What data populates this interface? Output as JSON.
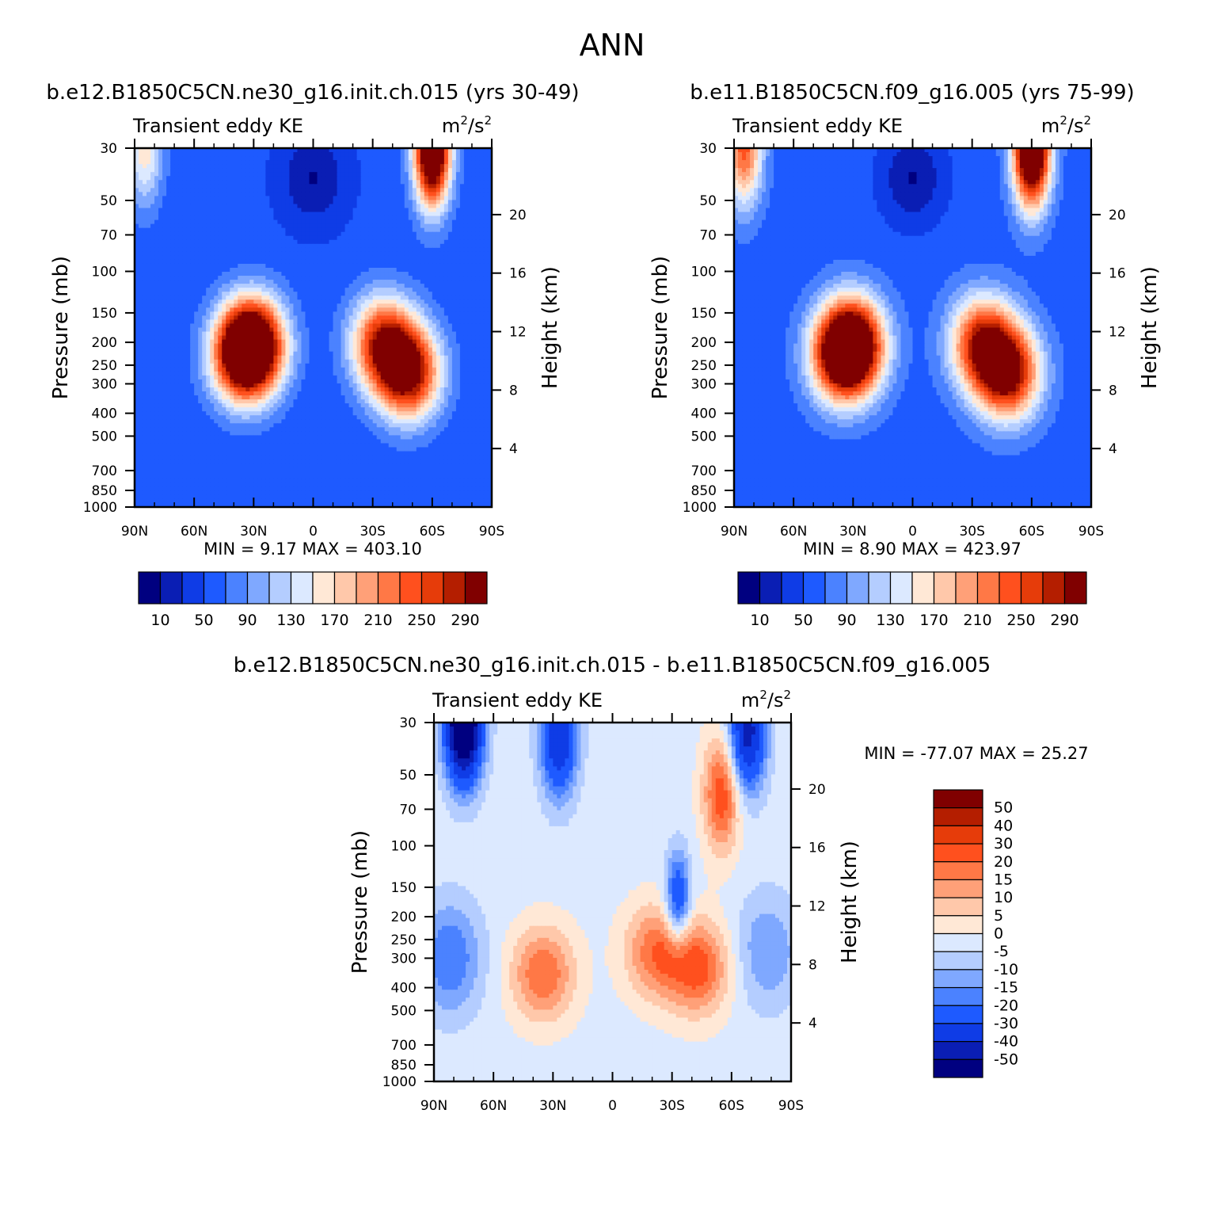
{
  "figure_title": "ANN",
  "colors": {
    "abs_palette": [
      "#000080",
      "#0a1eb4",
      "#0f3ce6",
      "#1e5aff",
      "#4b82ff",
      "#7fa8ff",
      "#b4cdff",
      "#dce9ff",
      "#ffe8d6",
      "#ffc8aa",
      "#ffa078",
      "#ff7846",
      "#ff501e",
      "#e63c0a",
      "#b41e00",
      "#800000"
    ],
    "diff_palette": [
      "#000080",
      "#0a1eb4",
      "#0f3ce6",
      "#1e5aff",
      "#4b82ff",
      "#7fa8ff",
      "#b4cdff",
      "#dce9ff",
      "#ffe8d6",
      "#ffc8aa",
      "#ffa078",
      "#ff7846",
      "#ff501e",
      "#e63c0a",
      "#b41e00",
      "#800000"
    ]
  },
  "chart_data": [
    {
      "type": "heatmap",
      "title": "b.e12.B1850C5CN.ne30_g16.init.ch.015 (yrs 30-49)",
      "left_label": "Transient eddy KE",
      "unit_base": "m",
      "unit_mid": "/s",
      "unit_exp": "2",
      "xlabel": "",
      "ylabel": "Pressure (mb)",
      "y2label": "Height (km)",
      "x_ticks": [
        {
          "value": -90,
          "label": "90N"
        },
        {
          "value": -60,
          "label": "60N"
        },
        {
          "value": -30,
          "label": "30N"
        },
        {
          "value": 0,
          "label": "0"
        },
        {
          "value": 30,
          "label": "30S"
        },
        {
          "value": 60,
          "label": "60S"
        },
        {
          "value": 90,
          "label": "90S"
        }
      ],
      "p_ticks": [
        30,
        50,
        70,
        100,
        150,
        200,
        250,
        300,
        400,
        500,
        700,
        850,
        1000
      ],
      "p_tick_labels": [
        "30",
        "50",
        "70",
        "100",
        "150",
        "200",
        "250",
        "300",
        "400",
        "500",
        "700",
        "850",
        "1000"
      ],
      "z_ticks": [
        4,
        8,
        12,
        16,
        20
      ],
      "z_tick_labels": [
        "4",
        "8",
        "12",
        "16",
        "20"
      ],
      "min_label": "MIN =",
      "min_value": "9.17",
      "max_label": "MAX =",
      "max_value": "403.10",
      "min": 9.17,
      "max": 403.1,
      "levels": [
        10,
        30,
        50,
        70,
        90,
        110,
        130,
        150,
        170,
        190,
        210,
        230,
        250,
        270,
        290
      ],
      "colorbar_labels": [
        "10",
        "50",
        "90",
        "130",
        "170",
        "210",
        "250",
        "290"
      ],
      "features": [
        {
          "name": "background",
          "lat": 0,
          "p": 300,
          "value": 55
        },
        {
          "name": "nh-subtropical-jet-core",
          "lat": -35,
          "p": 230,
          "value": 290
        },
        {
          "name": "nh-jet-upper-core",
          "lat": -30,
          "p": 200,
          "value": 280
        },
        {
          "name": "sh-storm-track-core",
          "lat": 48,
          "p": 270,
          "value": 300
        },
        {
          "name": "sh-jet-upper-core",
          "lat": 35,
          "p": 200,
          "value": 260
        },
        {
          "name": "sh-polar-stratosphere-max",
          "lat": 60,
          "p": 30,
          "value": 403
        },
        {
          "name": "equatorial-minimum",
          "lat": 0,
          "p": 40,
          "value": 9
        },
        {
          "name": "nh-polar-stratosphere",
          "lat": -85,
          "p": 30,
          "value": 165
        }
      ]
    },
    {
      "type": "heatmap",
      "title": "b.e11.B1850C5CN.f09_g16.005 (yrs 75-99)",
      "left_label": "Transient eddy KE",
      "unit_base": "m",
      "unit_mid": "/s",
      "unit_exp": "2",
      "xlabel": "",
      "ylabel": "Pressure (mb)",
      "y2label": "Height (km)",
      "x_ticks": [
        {
          "value": -90,
          "label": "90N"
        },
        {
          "value": -60,
          "label": "60N"
        },
        {
          "value": -30,
          "label": "30N"
        },
        {
          "value": 0,
          "label": "0"
        },
        {
          "value": 30,
          "label": "30S"
        },
        {
          "value": 60,
          "label": "60S"
        },
        {
          "value": 90,
          "label": "90S"
        }
      ],
      "p_ticks": [
        30,
        50,
        70,
        100,
        150,
        200,
        250,
        300,
        400,
        500,
        700,
        850,
        1000
      ],
      "p_tick_labels": [
        "30",
        "50",
        "70",
        "100",
        "150",
        "200",
        "250",
        "300",
        "400",
        "500",
        "700",
        "850",
        "1000"
      ],
      "z_ticks": [
        4,
        8,
        12,
        16,
        20
      ],
      "z_tick_labels": [
        "4",
        "8",
        "12",
        "16",
        "20"
      ],
      "min_label": "MIN =",
      "min_value": "8.90",
      "max_label": "MAX =",
      "max_value": "423.97",
      "min": 8.9,
      "max": 423.97,
      "levels": [
        10,
        30,
        50,
        70,
        90,
        110,
        130,
        150,
        170,
        190,
        210,
        230,
        250,
        270,
        290
      ],
      "colorbar_labels": [
        "10",
        "50",
        "90",
        "130",
        "170",
        "210",
        "250",
        "290"
      ],
      "features": [
        {
          "name": "background",
          "lat": 0,
          "p": 300,
          "value": 60
        },
        {
          "name": "nh-subtropical-jet-core",
          "lat": -35,
          "p": 230,
          "value": 285
        },
        {
          "name": "nh-jet-upper-core",
          "lat": -30,
          "p": 200,
          "value": 275
        },
        {
          "name": "sh-storm-track-core",
          "lat": 48,
          "p": 270,
          "value": 300
        },
        {
          "name": "sh-jet-upper-core",
          "lat": 35,
          "p": 200,
          "value": 265
        },
        {
          "name": "sh-polar-stratosphere-max",
          "lat": 60,
          "p": 30,
          "value": 424
        },
        {
          "name": "equatorial-minimum",
          "lat": 0,
          "p": 40,
          "value": 9
        },
        {
          "name": "nh-polar-stratosphere",
          "lat": -85,
          "p": 30,
          "value": 240
        }
      ]
    },
    {
      "type": "heatmap",
      "title": "b.e12.B1850C5CN.ne30_g16.init.ch.015 - b.e11.B1850C5CN.f09_g16.005",
      "left_label": "Transient eddy KE",
      "unit_base": "m",
      "unit_mid": "/s",
      "unit_exp": "2",
      "xlabel": "",
      "ylabel": "Pressure (mb)",
      "y2label": "Height (km)",
      "x_ticks": [
        {
          "value": -90,
          "label": "90N"
        },
        {
          "value": -60,
          "label": "60N"
        },
        {
          "value": -30,
          "label": "30N"
        },
        {
          "value": 0,
          "label": "0"
        },
        {
          "value": 30,
          "label": "30S"
        },
        {
          "value": 60,
          "label": "60S"
        },
        {
          "value": 90,
          "label": "90S"
        }
      ],
      "p_ticks": [
        30,
        50,
        70,
        100,
        150,
        200,
        250,
        300,
        400,
        500,
        700,
        850,
        1000
      ],
      "p_tick_labels": [
        "30",
        "50",
        "70",
        "100",
        "150",
        "200",
        "250",
        "300",
        "400",
        "500",
        "700",
        "850",
        "1000"
      ],
      "z_ticks": [
        4,
        8,
        12,
        16,
        20
      ],
      "z_tick_labels": [
        "4",
        "8",
        "12",
        "16",
        "20"
      ],
      "min_label": "MIN =",
      "min_value": "-77.07",
      "max_label": "MAX =",
      "max_value": "25.27",
      "min": -77.07,
      "max": 25.27,
      "levels": [
        -50,
        -40,
        -30,
        -20,
        -15,
        -10,
        -5,
        0,
        5,
        10,
        15,
        20,
        30,
        40,
        50
      ],
      "colorbar_labels": [
        "50",
        "40",
        "30",
        "20",
        "15",
        "10",
        "5",
        "0",
        "-5",
        "-10",
        "-15",
        "-20",
        "-30",
        "-40",
        "-50"
      ],
      "features": [
        {
          "name": "background",
          "lat": 0,
          "p": 300,
          "value": -2
        },
        {
          "name": "nh-polar-stratosphere-min",
          "lat": -75,
          "p": 30,
          "value": -77
        },
        {
          "name": "nh-subtropical-strat-min",
          "lat": -27,
          "p": 35,
          "value": -40
        },
        {
          "name": "nh-midlat-mid-trop-max",
          "lat": -35,
          "p": 350,
          "value": 20
        },
        {
          "name": "sh-midlat-mid-trop-max",
          "lat": 22,
          "p": 280,
          "value": 18
        },
        {
          "name": "sh-storm-track-max",
          "lat": 43,
          "p": 330,
          "value": 22
        },
        {
          "name": "sh-jet-narrow-min",
          "lat": 33,
          "p": 170,
          "value": -30
        },
        {
          "name": "sh-strat-positive-plume",
          "lat": 55,
          "p": 60,
          "value": 25
        },
        {
          "name": "sh-polar-strat-min",
          "lat": 68,
          "p": 33,
          "value": -45
        },
        {
          "name": "nh-polar-trop-min",
          "lat": -82,
          "p": 300,
          "value": -20
        },
        {
          "name": "sh-polar-trop-min",
          "lat": 78,
          "p": 280,
          "value": -15
        }
      ]
    }
  ]
}
